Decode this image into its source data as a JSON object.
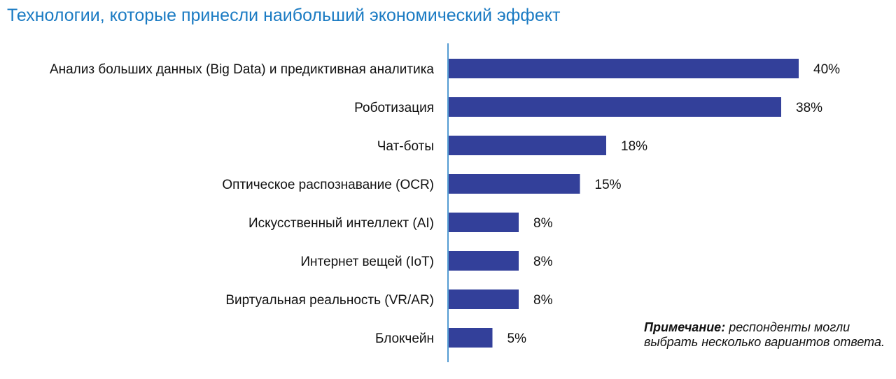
{
  "title": "Технологии, которые принесли наибольший экономический эффект",
  "note": {
    "prefix": "Примечание:",
    "line1": "респонденты могли",
    "line2": "выбрать несколько вариантов ответа."
  },
  "colors": {
    "bar": "#33409a",
    "title": "#1b7bc3",
    "axis": "#1b7bc3"
  },
  "chart_data": {
    "type": "bar",
    "orientation": "horizontal",
    "title": "Технологии, которые принесли наибольший экономический эффект",
    "categories": [
      "Анализ больших данных (Big Data) и предиктивная аналитика",
      "Роботизация",
      "Чат-боты",
      "Оптическое распознавание (OCR)",
      "Искусственный интеллект (AI)",
      "Интернет вещей (IoT)",
      "Виртуальная реальность (VR/AR)",
      "Блокчейн"
    ],
    "values": [
      40,
      38,
      18,
      15,
      8,
      8,
      8,
      5
    ],
    "value_labels": [
      "40%",
      "38%",
      "18%",
      "15%",
      "8%",
      "8%",
      "8%",
      "5%"
    ],
    "unit": "%",
    "xlim": [
      0,
      40
    ],
    "grid": false
  }
}
